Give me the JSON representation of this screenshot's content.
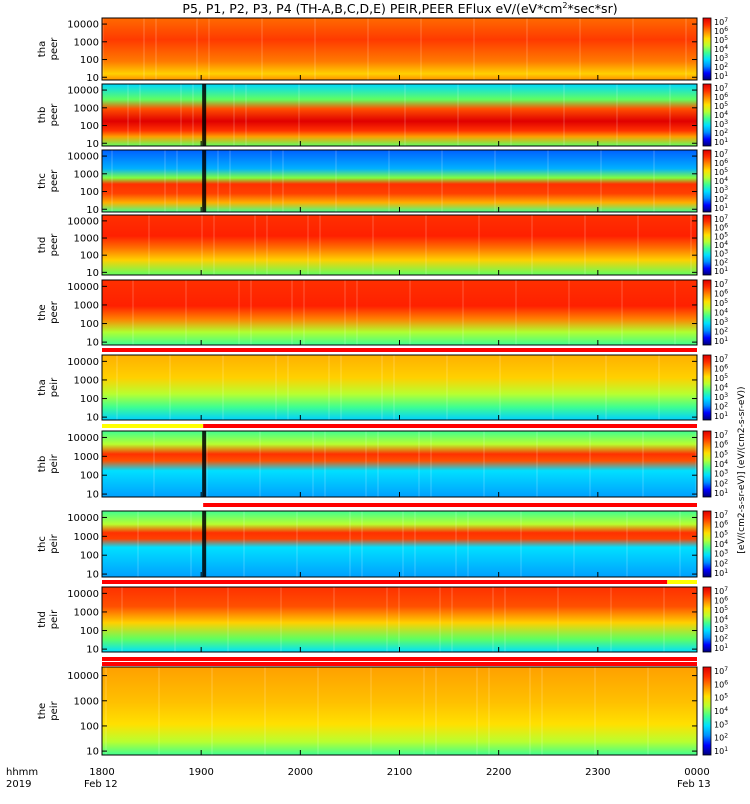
{
  "title": "P5, P1, P2, P3, P4 (TH-A,B,C,D,E) PEIR,PEER EFlux eV/(eV*cm",
  "title_sup": "2",
  "title_tail": "*sec*sr)",
  "colors": {
    "spectrum": [
      "#00007a",
      "#0000ff",
      "#0090ff",
      "#00e0ff",
      "#40ff90",
      "#b8ff30",
      "#ffe000",
      "#ff8a00",
      "#ff3000",
      "#e00000"
    ],
    "status_red": "#ff0000",
    "status_yellow": "#ffff00",
    "status_white": "#ffffff",
    "black": "#000000"
  },
  "footer": {
    "label_line1": "hhmm",
    "label_line2": "2019",
    "date_start": "Feb 12",
    "date_end": "Feb 13"
  },
  "colorbar_unit_text": "[eV/(cm2-s-sr-eV)] (eV/(cm2-s-sr-eV))",
  "chart_data": {
    "type": "heatmap",
    "x_axis": {
      "ticks": [
        "1800",
        "1900",
        "2000",
        "2100",
        "2200",
        "2300",
        "0000"
      ],
      "range_hours": [
        18,
        24
      ]
    },
    "colorbar_ticks": [
      "10^1",
      "10^2",
      "10^3",
      "10^4",
      "10^5",
      "10^6",
      "10^7"
    ],
    "panels": [
      {
        "probe": "tha",
        "species": "peer",
        "yticks": [
          "10000",
          "1000",
          "100",
          "10"
        ]
      },
      {
        "probe": "thb",
        "species": "peer",
        "yticks": [
          "10000",
          "1000",
          "100",
          "10"
        ]
      },
      {
        "probe": "thc",
        "species": "peer",
        "yticks": [
          "10000",
          "1000",
          "100",
          "10"
        ]
      },
      {
        "probe": "thd",
        "species": "peer",
        "yticks": [
          "10000",
          "1000",
          "100",
          "10"
        ]
      },
      {
        "probe": "the",
        "species": "peer",
        "yticks": [
          "10000",
          "1000",
          "100",
          "10"
        ]
      },
      {
        "probe": "tha",
        "species": "peir",
        "yticks": [
          "10000",
          "1000",
          "100",
          "10"
        ]
      },
      {
        "probe": "thb",
        "species": "peir",
        "yticks": [
          "10000",
          "1000",
          "100",
          "10"
        ]
      },
      {
        "probe": "thc",
        "species": "peir",
        "yticks": [
          "10000",
          "1000",
          "100",
          "10"
        ]
      },
      {
        "probe": "thd",
        "species": "peir",
        "yticks": [
          "10000",
          "1000",
          "100",
          "10"
        ]
      },
      {
        "probe": "the",
        "species": "peir",
        "yticks": [
          "10000",
          "1000",
          "100",
          "10"
        ]
      }
    ]
  }
}
